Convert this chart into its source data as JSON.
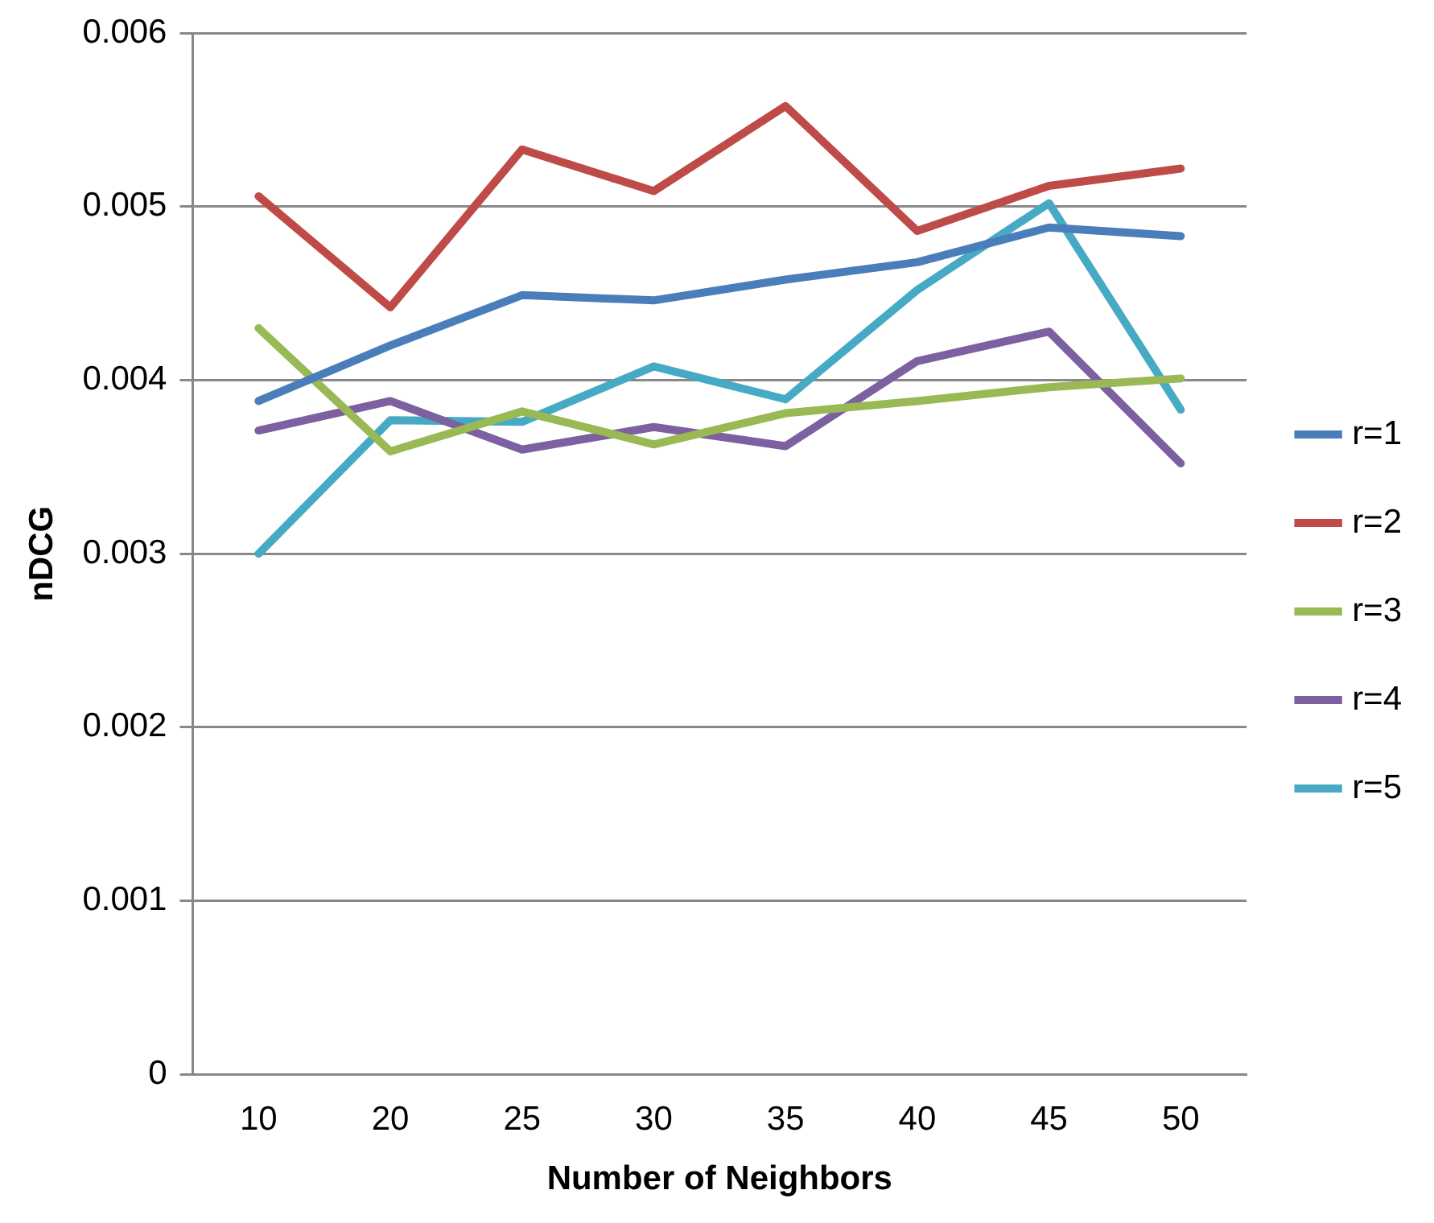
{
  "chart_data": {
    "type": "line",
    "xlabel": "Number of Neighbors",
    "ylabel": "nDCG",
    "categories": [
      "10",
      "20",
      "25",
      "30",
      "35",
      "40",
      "45",
      "50"
    ],
    "series": [
      {
        "name": "r=1",
        "color": "#4a7ebb",
        "values": [
          0.00388,
          0.0042,
          0.00449,
          0.00446,
          0.00458,
          0.00468,
          0.00488,
          0.00483
        ]
      },
      {
        "name": "r=2",
        "color": "#be4b48",
        "values": [
          0.00506,
          0.00442,
          0.00533,
          0.00509,
          0.00558,
          0.00486,
          0.00512,
          0.00522
        ]
      },
      {
        "name": "r=3",
        "color": "#98b954",
        "values": [
          0.0043,
          0.00359,
          0.00382,
          0.00363,
          0.00381,
          0.00388,
          0.00396,
          0.00401
        ]
      },
      {
        "name": "r=4",
        "color": "#7d60a0",
        "values": [
          0.00371,
          0.00388,
          0.0036,
          0.00373,
          0.00362,
          0.00411,
          0.00428,
          0.00352
        ]
      },
      {
        "name": "r=5",
        "color": "#46aac5",
        "values": [
          0.003,
          0.00377,
          0.00376,
          0.00408,
          0.00389,
          0.00452,
          0.00502,
          0.00383
        ]
      }
    ],
    "ylim": [
      0,
      0.006
    ],
    "yticks": [
      0,
      0.001,
      0.002,
      0.003,
      0.004,
      0.005,
      0.006
    ],
    "grid": "y",
    "legend": "right",
    "marker": "none",
    "line_style": "solid"
  }
}
